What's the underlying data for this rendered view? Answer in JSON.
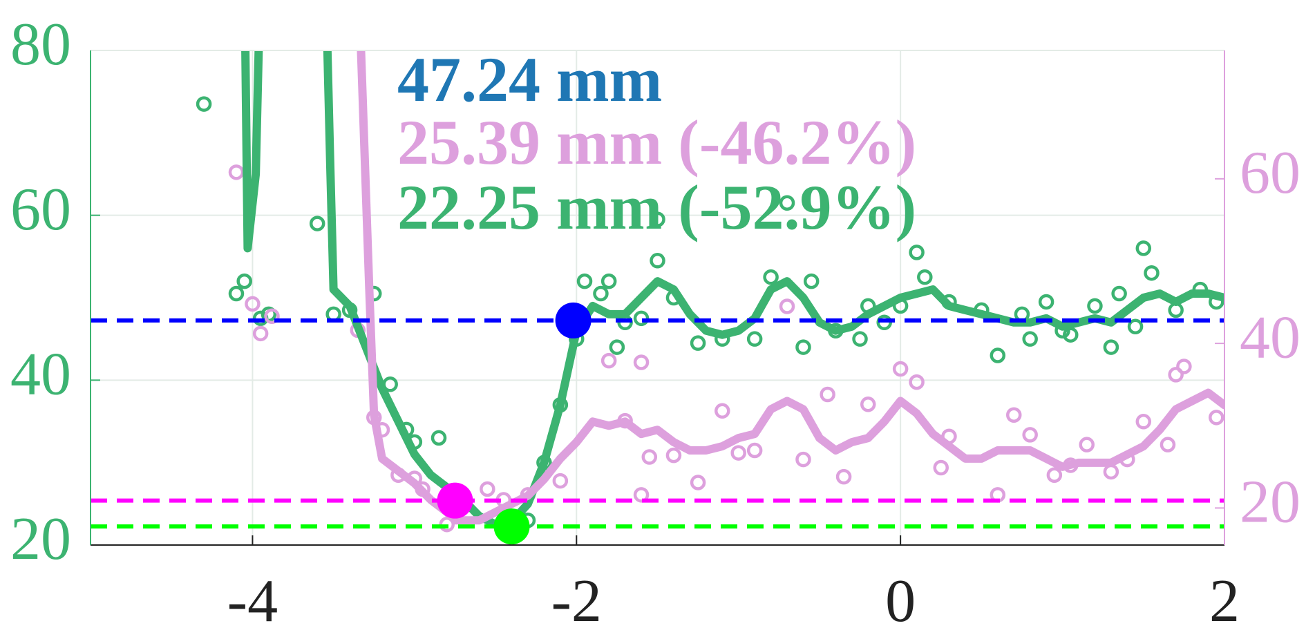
{
  "chart_data": {
    "type": "line",
    "xlim": [
      -5,
      2
    ],
    "xticks": [
      -4,
      -2,
      0,
      2
    ],
    "ylim": [
      20,
      80
    ],
    "yticks": [
      20,
      40,
      60,
      80
    ],
    "y2lim": [
      15.5,
      75.6
    ],
    "y2ticks": [
      20,
      40,
      60
    ],
    "grid": true,
    "left_axis_color": "#3cb371",
    "right_axis_color": "#dda0dd",
    "series": [
      {
        "style": "line",
        "color": "#3cb371",
        "x": [
          -4.05,
          -4.03,
          -3.98,
          -3.95,
          -3.9,
          -3.55,
          -3.52,
          -3.5,
          -3.4,
          -3.3,
          -3.2,
          -3.1,
          -3.0,
          -2.9,
          -2.8,
          -2.7,
          -2.6,
          -2.5,
          -2.4,
          -2.3,
          -2.2,
          -2.1,
          -2.0,
          -1.9,
          -1.8,
          -1.7,
          -1.6,
          -1.5,
          -1.4,
          -1.3,
          -1.2,
          -1.1,
          -1.0,
          -0.9,
          -0.8,
          -0.7,
          -0.6,
          -0.5,
          -0.4,
          -0.3,
          -0.2,
          -0.1,
          0.0,
          0.1,
          0.2,
          0.3,
          0.4,
          0.5,
          0.6,
          0.7,
          0.8,
          0.9,
          1.0,
          1.1,
          1.2,
          1.3,
          1.4,
          1.5,
          1.6,
          1.7,
          1.8,
          1.9,
          2.0
        ],
        "values": [
          90,
          56,
          65,
          90,
          null,
          90,
          66,
          51,
          49,
          44,
          39,
          35,
          31,
          28.5,
          27,
          25.5,
          23.5,
          22.5,
          22.8,
          25,
          30,
          37,
          46,
          49,
          48,
          48,
          50,
          52,
          51,
          48,
          46,
          45.5,
          46,
          47.5,
          51,
          52,
          50,
          47,
          46,
          46.5,
          48,
          49,
          50,
          50.5,
          51,
          49,
          48.5,
          48,
          47.5,
          47,
          47,
          47.5,
          46.5,
          47,
          47.5,
          47,
          48.5,
          50,
          50.5,
          49.5,
          50.5,
          50.5,
          50
        ]
      },
      {
        "style": "markers",
        "color": "#3cb371",
        "x": [
          -4.3,
          -4.1,
          -4.05,
          -3.95,
          -3.9,
          -3.6,
          -3.5,
          -3.4,
          -3.25,
          -3.15,
          -3.05,
          -3.0,
          -2.85,
          -2.3,
          -2.2,
          -2.1,
          -2.0,
          -1.95,
          -1.85,
          -1.8,
          -1.75,
          -1.7,
          -1.6,
          -1.5,
          -1.5,
          -1.4,
          -1.25,
          -1.1,
          -0.9,
          -0.8,
          -0.7,
          -0.6,
          -0.55,
          -0.4,
          -0.25,
          -0.2,
          -0.1,
          0.0,
          0.1,
          0.15,
          0.3,
          0.5,
          0.6,
          0.75,
          0.8,
          0.9,
          1.0,
          1.05,
          1.2,
          1.3,
          1.35,
          1.45,
          1.5,
          1.55,
          1.7,
          1.85,
          1.95
        ],
        "values": [
          73.5,
          50.5,
          52,
          47.5,
          48,
          59,
          48,
          48.5,
          50.5,
          39.5,
          34,
          32.5,
          33,
          23,
          30,
          37,
          45,
          52,
          50.5,
          52,
          44,
          47,
          47.5,
          54.5,
          59.5,
          50,
          44.5,
          45,
          45,
          52.5,
          61.5,
          44,
          52,
          46,
          45,
          49,
          47,
          49,
          55.5,
          52.5,
          49.5,
          48.5,
          43,
          48,
          45,
          49.5,
          46,
          45.5,
          49,
          44,
          50.5,
          46.5,
          56,
          53,
          48.5,
          51,
          49.5
        ]
      },
      {
        "style": "line",
        "color": "#dda0dd",
        "axis": "y2",
        "x": [
          -3.33,
          -3.28,
          -3.25,
          -3.2,
          -3.1,
          -3.0,
          -2.9,
          -2.8,
          -2.75,
          -2.6,
          -2.5,
          -2.4,
          -2.3,
          -2.2,
          -2.1,
          -2.0,
          -1.9,
          -1.8,
          -1.7,
          -1.6,
          -1.5,
          -1.4,
          -1.3,
          -1.2,
          -1.1,
          -1.0,
          -0.9,
          -0.8,
          -0.7,
          -0.6,
          -0.5,
          -0.4,
          -0.3,
          -0.2,
          -0.1,
          0.0,
          0.1,
          0.2,
          0.3,
          0.4,
          0.5,
          0.6,
          0.7,
          0.8,
          0.9,
          1.0,
          1.1,
          1.2,
          1.3,
          1.4,
          1.5,
          1.6,
          1.7,
          1.8,
          1.9,
          2.0
        ],
        "values": [
          75.5,
          47,
          31.3,
          26,
          24.5,
          23,
          21,
          19.5,
          18.5,
          18.5,
          19.5,
          20.5,
          21.5,
          23.5,
          26,
          28,
          30.5,
          30,
          30.5,
          29,
          29.5,
          28,
          27,
          27,
          27.5,
          28.5,
          29,
          32,
          33,
          32,
          28.5,
          27,
          28,
          28.5,
          30.5,
          33,
          31.5,
          29,
          27.5,
          26,
          26,
          27,
          27,
          27,
          26,
          25,
          25.5,
          25.5,
          25.5,
          26.5,
          27.5,
          29.5,
          32,
          33,
          34,
          32.5
        ]
      },
      {
        "style": "markers",
        "color": "#dda0dd",
        "axis": "y2",
        "x": [
          -4.1,
          -4.0,
          -3.95,
          -3.88,
          -3.35,
          -3.25,
          -3.2,
          -3.1,
          -3.0,
          -2.95,
          -2.8,
          -2.55,
          -2.45,
          -2.3,
          -2.1,
          -1.8,
          -1.7,
          -1.6,
          -1.6,
          -1.55,
          -1.4,
          -1.25,
          -1.1,
          -1.0,
          -0.9,
          -0.7,
          -0.6,
          -0.45,
          -0.35,
          -0.2,
          0.0,
          0.1,
          0.25,
          0.3,
          0.6,
          0.7,
          0.8,
          0.95,
          1.05,
          1.15,
          1.3,
          1.4,
          1.5,
          1.65,
          1.7,
          1.75,
          1.95
        ],
        "values": [
          60.8,
          44.8,
          41.2,
          43.3,
          41.6,
          31,
          29.5,
          24,
          23.6,
          22.3,
          18,
          22.3,
          21,
          21.6,
          23.3,
          37.9,
          30.6,
          37.7,
          21.6,
          26.2,
          26.4,
          23.1,
          31.8,
          26.7,
          27,
          44.5,
          25.9,
          33.8,
          23.8,
          32.6,
          36.9,
          35.3,
          24.9,
          28.7,
          21.6,
          31.3,
          28.9,
          24,
          25.2,
          27.7,
          24.4,
          25.9,
          30.5,
          27.7,
          36.2,
          37.2,
          31
        ]
      }
    ],
    "reference_lines": [
      {
        "value": 47.24,
        "color": "#0000ff"
      },
      {
        "value": 25.39,
        "color": "#ff00ff"
      },
      {
        "value": 22.25,
        "color": "#00ff00"
      }
    ],
    "highlights": [
      {
        "x": -2.02,
        "value": 47.24,
        "color": "#0000ff"
      },
      {
        "x": -2.75,
        "value": 25.39,
        "color": "#ff00ff"
      },
      {
        "x": -2.4,
        "value": 22.25,
        "color": "#00ff00"
      }
    ],
    "annotations": [
      {
        "text": "47.24 mm",
        "color": "#1f77b4"
      },
      {
        "text": "25.39 mm (-46.2%)",
        "color": "#dda0dd"
      },
      {
        "text": "22.25 mm (-52.9%)",
        "color": "#3cb371"
      }
    ]
  }
}
